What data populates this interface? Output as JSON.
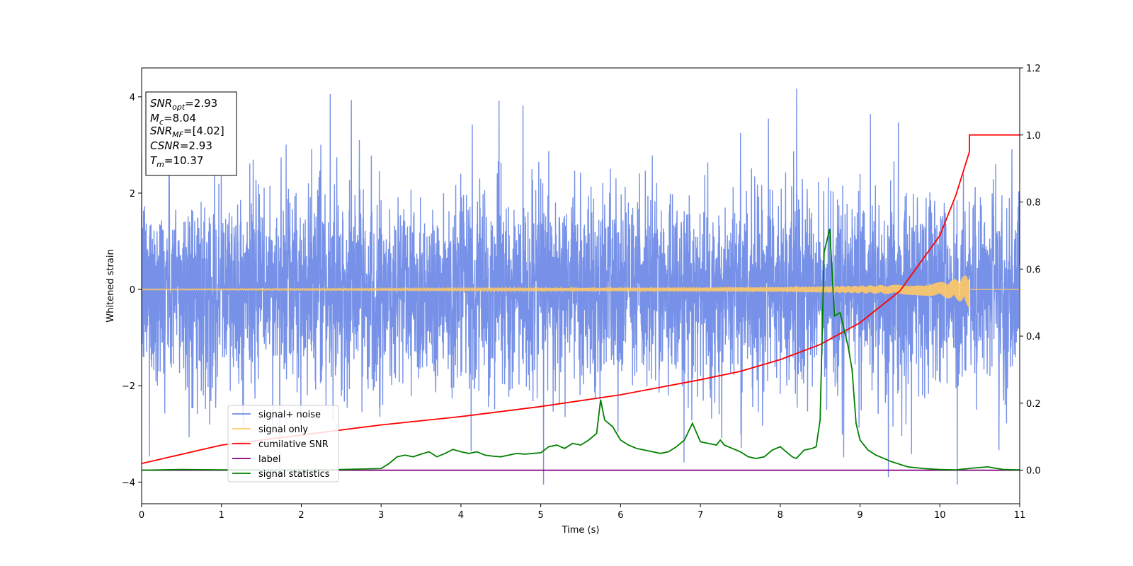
{
  "chart_data": {
    "type": "line",
    "xlabel": "Time (s)",
    "ylabel": "Whitened strain",
    "xlim": [
      0,
      11
    ],
    "ylim_left": [
      -4.45,
      4.6
    ],
    "ylim_right": [
      -0.1,
      1.2
    ],
    "x_ticks": [
      "0",
      "1",
      "2",
      "3",
      "4",
      "5",
      "6",
      "7",
      "8",
      "9",
      "10",
      "11"
    ],
    "y_left_ticks": [
      "4",
      "2",
      "0",
      "−2",
      "−4"
    ],
    "y_right_ticks": [
      "1.2",
      "1.0",
      "0.8",
      "0.6",
      "0.4",
      "0.2",
      "0.0"
    ],
    "y_left_tick_values": [
      4,
      2,
      0,
      -2,
      -4
    ],
    "y_right_tick_values": [
      1.2,
      1.0,
      0.8,
      0.6,
      0.4,
      0.2,
      0.0
    ],
    "info_box": [
      {
        "base": "SNR",
        "sub": "opt",
        "value": "=2.93"
      },
      {
        "base": "M",
        "sub": "c",
        "value": "=8.04"
      },
      {
        "base": "SNR",
        "sub": "MF",
        "value": "=[4.02]"
      },
      {
        "base": "CSNR",
        "sub": "",
        "value": "=2.93"
      },
      {
        "base": "T",
        "sub": "m",
        "value": "=10.37"
      }
    ],
    "legend": {
      "placement": "lower-left",
      "entries": [
        {
          "label": "signal+ noise",
          "color": "#6f8be6"
        },
        {
          "label": "signal only",
          "color": "#ffc966"
        },
        {
          "label": "cumilative SNR",
          "color": "#ff0000"
        },
        {
          "label": "label",
          "color": "#800080"
        },
        {
          "label": "signal statistics",
          "color": "#008000"
        }
      ]
    },
    "series": [
      {
        "name": "signal+ noise",
        "axis": "left",
        "color": "#6f8be6",
        "description_stats": {
          "x_range": [
            0,
            11
          ],
          "typical_abs_max": 2.3,
          "max": 4.17,
          "min": -4.05
        }
      },
      {
        "name": "signal only",
        "axis": "left",
        "color": "#ffc966",
        "x": [
          0,
          5,
          7,
          8,
          9,
          9.5,
          10,
          10.2,
          10.3,
          10.37
        ],
        "amplitude": [
          0.01,
          0.03,
          0.04,
          0.05,
          0.08,
          0.1,
          0.15,
          0.22,
          0.28,
          0.38
        ]
      },
      {
        "name": "cumilative SNR",
        "axis": "right",
        "color": "#ff0000",
        "x": [
          0,
          1,
          2,
          3,
          4,
          5,
          6,
          7,
          7.5,
          8,
          8.5,
          9,
          9.5,
          10,
          10.2,
          10.37,
          10.37,
          11
        ],
        "y": [
          0.02,
          0.075,
          0.105,
          0.135,
          0.16,
          0.19,
          0.225,
          0.27,
          0.295,
          0.33,
          0.375,
          0.44,
          0.535,
          0.7,
          0.82,
          0.95,
          1.0,
          1.0
        ]
      },
      {
        "name": "label",
        "axis": "right",
        "color": "#800080",
        "x": [
          0,
          11
        ],
        "y": [
          0.0,
          0.0
        ]
      },
      {
        "name": "signal statistics",
        "axis": "right",
        "color": "#008000",
        "x": [
          0,
          0.5,
          1,
          2,
          2.5,
          3.0,
          3.1,
          3.2,
          3.3,
          3.4,
          3.5,
          3.6,
          3.7,
          3.8,
          3.9,
          4.0,
          4.1,
          4.2,
          4.3,
          4.4,
          4.5,
          4.6,
          4.7,
          4.8,
          4.9,
          5.0,
          5.1,
          5.2,
          5.3,
          5.4,
          5.5,
          5.6,
          5.7,
          5.75,
          5.8,
          5.85,
          5.9,
          6.0,
          6.1,
          6.2,
          6.3,
          6.4,
          6.5,
          6.6,
          6.7,
          6.8,
          6.9,
          7.0,
          7.1,
          7.2,
          7.25,
          7.3,
          7.4,
          7.5,
          7.6,
          7.7,
          7.8,
          7.9,
          8.0,
          8.1,
          8.15,
          8.2,
          8.3,
          8.4,
          8.45,
          8.5,
          8.55,
          8.62,
          8.68,
          8.75,
          8.8,
          8.85,
          8.9,
          8.95,
          9.0,
          9.1,
          9.2,
          9.4,
          9.6,
          9.8,
          10.0,
          10.2,
          10.4,
          10.6,
          10.8,
          11.0
        ],
        "y": [
          0.0,
          0.002,
          0.001,
          0.001,
          0.002,
          0.005,
          0.02,
          0.04,
          0.045,
          0.04,
          0.048,
          0.055,
          0.04,
          0.05,
          0.062,
          0.055,
          0.05,
          0.055,
          0.045,
          0.042,
          0.04,
          0.045,
          0.05,
          0.048,
          0.05,
          0.052,
          0.07,
          0.075,
          0.065,
          0.08,
          0.075,
          0.09,
          0.11,
          0.21,
          0.15,
          0.14,
          0.13,
          0.09,
          0.075,
          0.065,
          0.06,
          0.055,
          0.05,
          0.055,
          0.07,
          0.09,
          0.14,
          0.085,
          0.08,
          0.075,
          0.09,
          0.075,
          0.065,
          0.055,
          0.04,
          0.035,
          0.04,
          0.06,
          0.07,
          0.05,
          0.04,
          0.035,
          0.06,
          0.065,
          0.07,
          0.15,
          0.65,
          0.72,
          0.46,
          0.47,
          0.42,
          0.37,
          0.3,
          0.14,
          0.09,
          0.06,
          0.045,
          0.025,
          0.01,
          0.005,
          0.002,
          0.001,
          0.006,
          0.01,
          0.002,
          0.001
        ]
      }
    ]
  }
}
